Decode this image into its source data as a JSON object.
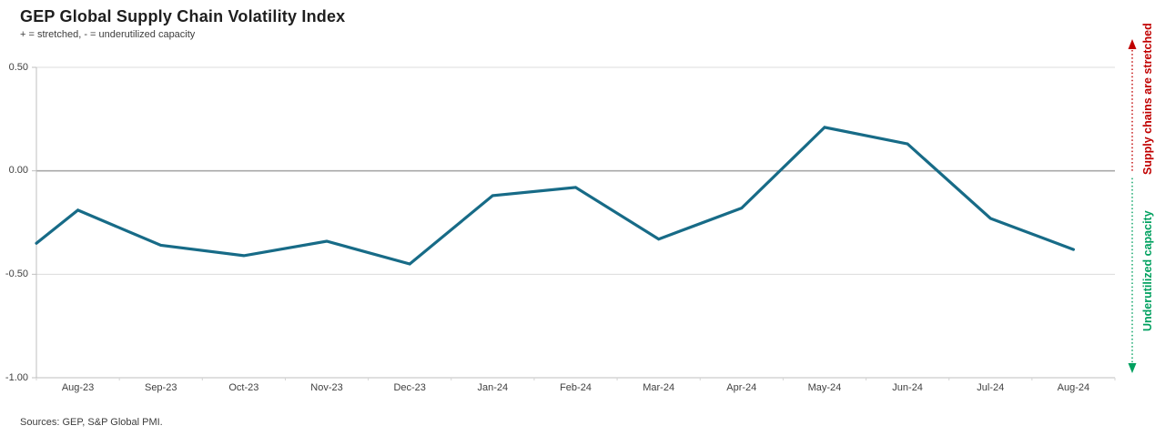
{
  "header": {
    "title": "GEP Global Supply Chain Volatility Index",
    "subtitle": "+ = stretched, - = underutilized capacity"
  },
  "footer": {
    "sources": "Sources: GEP, S&P Global PMI."
  },
  "chart_data": {
    "type": "line",
    "title": "GEP Global Supply Chain Volatility Index",
    "subtitle": "+ = stretched, - = underutilized capacity",
    "categories": [
      "Aug-23",
      "Sep-23",
      "Oct-23",
      "Nov-23",
      "Dec-23",
      "Jan-24",
      "Feb-24",
      "Mar-24",
      "Apr-24",
      "May-24",
      "Jun-24",
      "Jul-24",
      "Aug-24"
    ],
    "series": [
      {
        "name": "GEP Global Supply Chain Volatility Index",
        "values": [
          -0.19,
          -0.36,
          -0.41,
          -0.34,
          -0.45,
          -0.12,
          -0.08,
          -0.33,
          -0.18,
          0.21,
          0.13,
          -0.23,
          -0.38
        ]
      }
    ],
    "edge_start_value": -0.35,
    "ylim": [
      -1.0,
      0.5
    ],
    "yticks": [
      {
        "label": "0.50",
        "value": 0.5
      },
      {
        "label": "0.00",
        "value": 0.0
      },
      {
        "label": "-0.50",
        "value": -0.5
      },
      {
        "label": "-1.00",
        "value": -1.0
      }
    ],
    "grid": "horizontal",
    "zero_line": true,
    "legend": "none",
    "colors": {
      "line": "#176B87",
      "zero_line": "#a8a8a8",
      "gridline": "#dcdcdc",
      "axis": "#bfbfbf",
      "stretched_red": "#C00000",
      "underutilized_green": "#00A05F"
    },
    "annotations": {
      "up": {
        "text": "Supply chains are stretched",
        "color": "#C00000",
        "arrow": "up-dashed"
      },
      "down": {
        "text": "Underutilized capacity",
        "color": "#00A05F",
        "arrow": "down-dashed"
      }
    }
  }
}
